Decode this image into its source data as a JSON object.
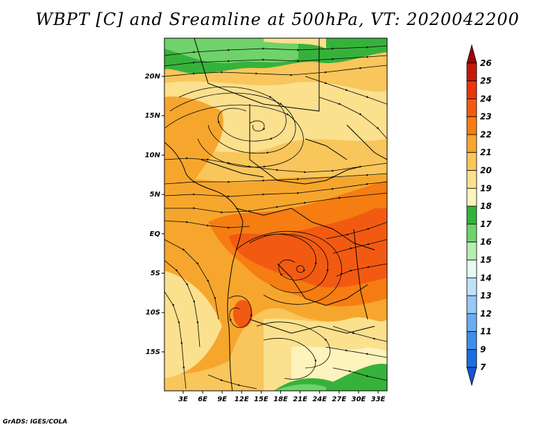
{
  "title": "WBPT [C] and Sreamline at 500hPa, VT: 2020042200",
  "credit": "GrADS: IGES/COLA",
  "map": {
    "lat_labels": [
      "20N",
      "15N",
      "10N",
      "5N",
      "EQ",
      "5S",
      "10S",
      "15S"
    ],
    "lon_labels": [
      "3E",
      "6E",
      "9E",
      "12E",
      "15E",
      "18E",
      "21E",
      "24E",
      "27E",
      "30E",
      "33E"
    ]
  },
  "colorbar": {
    "labels": [
      "26",
      "25",
      "24",
      "23",
      "22",
      "21",
      "20",
      "19",
      "18",
      "17",
      "16",
      "15",
      "14",
      "13",
      "12",
      "11",
      "9",
      "7"
    ],
    "colors": [
      "#a00000",
      "#c01a0a",
      "#e8360f",
      "#f25a12",
      "#f57d12",
      "#f7a62d",
      "#f8c65b",
      "#fbe08e",
      "#fcf3bd",
      "#36b23b",
      "#6fd26a",
      "#b6eeaf",
      "#e6faf2",
      "#bfe1fb",
      "#96c9f6",
      "#6aacf0",
      "#3f8de8",
      "#1c6ee0",
      "#1854d0"
    ]
  }
}
